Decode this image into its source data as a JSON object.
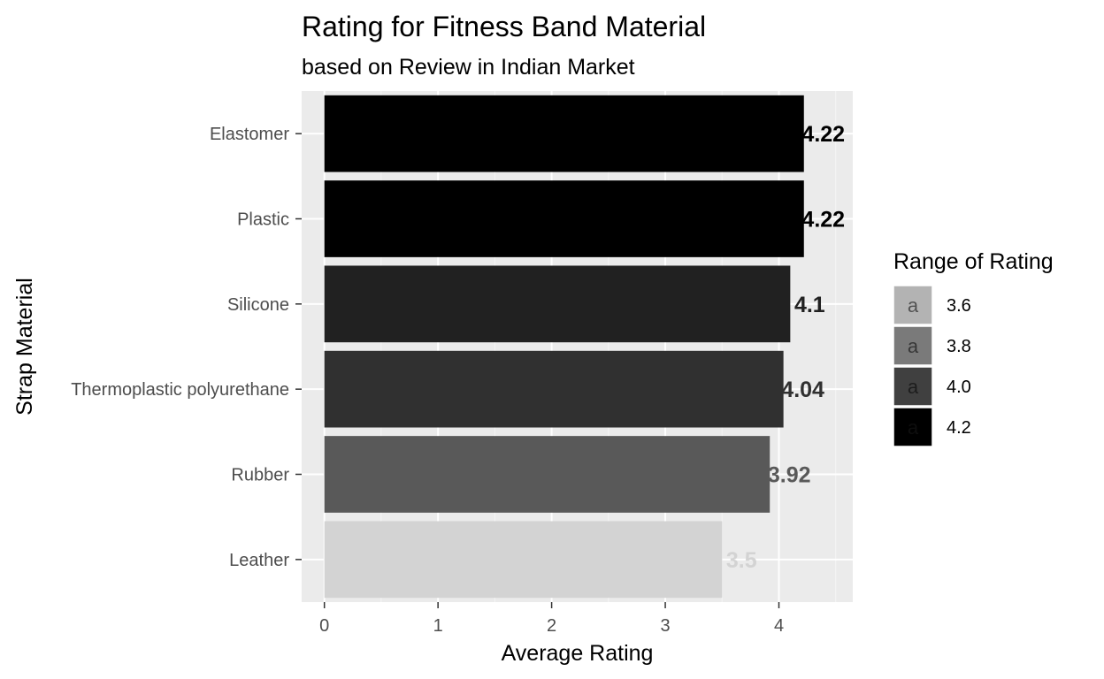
{
  "chart_data": {
    "type": "bar",
    "orientation": "horizontal",
    "title": "Rating for Fitness Band Material",
    "subtitle": "based on Review in Indian Market",
    "xlabel": "Average Rating",
    "ylabel": "Strap Material",
    "xlim": [
      -0.2,
      4.65
    ],
    "x_ticks": [
      "0",
      "1",
      "2",
      "3",
      "4"
    ],
    "grid": true,
    "categories": [
      "Elastomer",
      "Plastic",
      "Silicone",
      "Thermoplastic polyurethane",
      "Rubber",
      "Leather"
    ],
    "values": [
      4.22,
      4.22,
      4.1,
      4.04,
      3.92,
      3.5
    ],
    "data_labels": [
      "4.22",
      "4.22",
      "4.1",
      "4.04",
      "3.92",
      "3.5"
    ],
    "colors": [
      "#000000",
      "#000000",
      "#212121",
      "#303030",
      "#595959",
      "#d3d3d3"
    ],
    "legend": {
      "title": "Range of Rating",
      "placement": "right",
      "entries": [
        {
          "label": "3.6",
          "color": "#b3b3b3"
        },
        {
          "label": "3.8",
          "color": "#7a7a7a"
        },
        {
          "label": "4.0",
          "color": "#404040"
        },
        {
          "label": "4.2",
          "color": "#000000"
        }
      ],
      "key_glyph": "a"
    }
  }
}
